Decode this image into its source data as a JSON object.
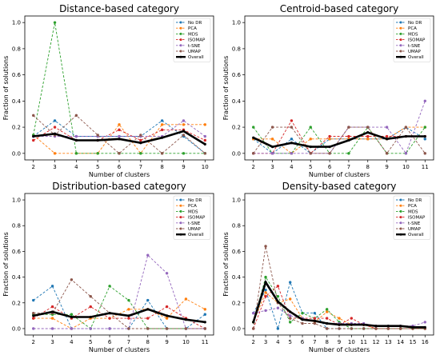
{
  "chart_data": [
    {
      "type": "line",
      "title": "Distance-based category",
      "xlabel": "Number of clusters",
      "ylabel": "Fraction of solutions",
      "x": [
        2,
        3,
        4,
        5,
        6,
        7,
        8,
        9,
        10
      ],
      "xlim": [
        1.6,
        10.4
      ],
      "ylim": [
        -0.05,
        1.05
      ],
      "yticks": [
        0.0,
        0.2,
        0.4,
        0.6,
        0.8,
        1.0
      ],
      "grid": false,
      "legend": "top-right",
      "series": [
        {
          "name": "No DR",
          "color": "#1f77b4",
          "values": [
            0.13,
            0.25,
            0.13,
            0.13,
            0.13,
            0.13,
            0.25,
            0.13,
            0.0
          ]
        },
        {
          "name": "PCA",
          "color": "#ff7f0e",
          "values": [
            0.14,
            0.0,
            0.0,
            0.0,
            0.22,
            0.0,
            0.22,
            0.22,
            0.22
          ]
        },
        {
          "name": "MDS",
          "color": "#2ca02c",
          "values": [
            0.14,
            1.0,
            0.0,
            0.0,
            0.0,
            0.0,
            0.0,
            0.0,
            0.0
          ]
        },
        {
          "name": "ISOMAP",
          "color": "#d62728",
          "values": [
            0.1,
            0.2,
            0.1,
            0.1,
            0.18,
            0.1,
            0.18,
            0.18,
            0.1
          ]
        },
        {
          "name": "t-SNE",
          "color": "#9467bd",
          "values": [
            0.13,
            0.13,
            0.13,
            0.13,
            0.13,
            0.13,
            0.13,
            0.25,
            0.13
          ]
        },
        {
          "name": "UMAP",
          "color": "#8c564b",
          "values": [
            0.29,
            0.14,
            0.29,
            0.14,
            0.0,
            0.14,
            0.0,
            0.14,
            0.0
          ]
        },
        {
          "name": "Overall",
          "color": "#000000",
          "values": [
            0.13,
            0.15,
            0.1,
            0.1,
            0.11,
            0.08,
            0.12,
            0.17,
            0.07
          ]
        }
      ]
    },
    {
      "type": "line",
      "title": "Centroid-based category",
      "xlabel": "Number of clusters",
      "ylabel": "Fraction of solutions",
      "x": [
        2,
        3,
        4,
        5,
        6,
        7,
        8,
        9,
        10,
        11
      ],
      "xlim": [
        1.55,
        11.45
      ],
      "ylim": [
        -0.05,
        1.05
      ],
      "yticks": [
        0.0,
        0.2,
        0.4,
        0.6,
        0.8,
        1.0
      ],
      "grid": false,
      "legend": "top-right",
      "series": [
        {
          "name": "No DR",
          "color": "#1f77b4",
          "values": [
            0.11,
            0.0,
            0.11,
            0.0,
            0.11,
            0.11,
            0.11,
            0.11,
            0.2,
            0.11
          ]
        },
        {
          "name": "PCA",
          "color": "#ff7f0e",
          "values": [
            0.11,
            0.11,
            0.0,
            0.11,
            0.11,
            0.11,
            0.11,
            0.11,
            0.2,
            0.2
          ]
        },
        {
          "name": "MDS",
          "color": "#2ca02c",
          "values": [
            0.2,
            0.0,
            0.0,
            0.2,
            0.0,
            0.0,
            0.2,
            0.0,
            0.0,
            0.2
          ]
        },
        {
          "name": "ISOMAP",
          "color": "#d62728",
          "values": [
            0.0,
            0.0,
            0.25,
            0.0,
            0.13,
            0.13,
            0.13,
            0.13,
            0.13,
            0.13
          ]
        },
        {
          "name": "t-SNE",
          "color": "#9467bd",
          "values": [
            0.0,
            0.0,
            0.0,
            0.0,
            0.0,
            0.2,
            0.2,
            0.2,
            0.0,
            0.4
          ]
        },
        {
          "name": "UMAP",
          "color": "#8c564b",
          "values": [
            0.0,
            0.2,
            0.2,
            0.0,
            0.0,
            0.2,
            0.2,
            0.0,
            0.2,
            0.0
          ]
        },
        {
          "name": "Overall",
          "color": "#000000",
          "values": [
            0.12,
            0.05,
            0.08,
            0.05,
            0.05,
            0.1,
            0.16,
            0.11,
            0.13,
            0.13
          ]
        }
      ]
    },
    {
      "type": "line",
      "title": "Distribution-based category",
      "xlabel": "Number of clusters",
      "ylabel": "Fraction of solutions",
      "x": [
        2,
        3,
        4,
        5,
        6,
        7,
        8,
        9,
        10,
        11
      ],
      "xlim": [
        1.55,
        11.45
      ],
      "ylim": [
        -0.05,
        1.05
      ],
      "yticks": [
        0.0,
        0.2,
        0.4,
        0.6,
        0.8,
        1.0
      ],
      "grid": false,
      "legend": "top-right",
      "series": [
        {
          "name": "No DR",
          "color": "#1f77b4",
          "values": [
            0.22,
            0.33,
            0.0,
            0.0,
            0.0,
            0.0,
            0.22,
            0.0,
            0.0,
            0.11
          ]
        },
        {
          "name": "PCA",
          "color": "#ff7f0e",
          "values": [
            0.08,
            0.08,
            0.0,
            0.08,
            0.08,
            0.15,
            0.15,
            0.08,
            0.23,
            0.15
          ]
        },
        {
          "name": "MDS",
          "color": "#2ca02c",
          "values": [
            0.11,
            0.11,
            0.11,
            0.0,
            0.33,
            0.22,
            0.0,
            0.0,
            0.0,
            0.0
          ]
        },
        {
          "name": "ISOMAP",
          "color": "#d62728",
          "values": [
            0.08,
            0.17,
            0.08,
            0.17,
            0.08,
            0.08,
            0.08,
            0.17,
            0.08,
            0.0
          ]
        },
        {
          "name": "t-SNE",
          "color": "#9467bd",
          "values": [
            0.0,
            0.0,
            0.0,
            0.0,
            0.0,
            0.0,
            0.57,
            0.43,
            0.0,
            0.0
          ]
        },
        {
          "name": "UMAP",
          "color": "#8c564b",
          "values": [
            0.12,
            0.12,
            0.38,
            0.25,
            0.12,
            0.0,
            0.0,
            0.0,
            0.0,
            0.0
          ]
        },
        {
          "name": "Overall",
          "color": "#000000",
          "values": [
            0.1,
            0.13,
            0.09,
            0.09,
            0.12,
            0.1,
            0.15,
            0.1,
            0.07,
            0.05
          ]
        }
      ]
    },
    {
      "type": "line",
      "title": "Density-based category",
      "xlabel": "Number of clusters",
      "ylabel": "Fraction of solutions",
      "x": [
        2,
        3,
        4,
        5,
        6,
        7,
        8,
        9,
        10,
        11,
        12,
        13,
        14,
        15,
        16
      ],
      "xticks": [
        2,
        3,
        4,
        5,
        6,
        7,
        8,
        9,
        10,
        11,
        12,
        13,
        14,
        15,
        16
      ],
      "xlim": [
        1.3,
        16.7
      ],
      "ylim": [
        -0.05,
        1.05
      ],
      "yticks": [
        0.0,
        0.2,
        0.4,
        0.6,
        0.8,
        1.0
      ],
      "grid": false,
      "legend": "top-right",
      "series": [
        {
          "name": "No DR",
          "color": "#1f77b4",
          "values": [
            0.12,
            0.3,
            0.0,
            0.36,
            0.12,
            0.12,
            0.0,
            0.0,
            0.0,
            0.0,
            0.0,
            0.0,
            0.0,
            0.0,
            0.0
          ]
        },
        {
          "name": "PCA",
          "color": "#ff7f0e",
          "values": [
            0.05,
            0.28,
            0.2,
            0.23,
            0.08,
            0.05,
            0.13,
            0.08,
            0.03,
            0.03,
            0.0,
            0.0,
            0.0,
            0.0,
            0.0
          ]
        },
        {
          "name": "MDS",
          "color": "#2ca02c",
          "values": [
            0.05,
            0.4,
            0.25,
            0.05,
            0.12,
            0.08,
            0.15,
            0.05,
            0.0,
            0.0,
            0.0,
            0.0,
            0.0,
            0.0,
            0.0
          ]
        },
        {
          "name": "ISOMAP",
          "color": "#d62728",
          "values": [
            0.0,
            0.25,
            0.33,
            0.08,
            0.08,
            0.08,
            0.08,
            0.03,
            0.08,
            0.03,
            0.0,
            0.0,
            0.0,
            0.0,
            0.0
          ]
        },
        {
          "name": "t-SNE",
          "color": "#9467bd",
          "values": [
            0.12,
            0.14,
            0.16,
            0.1,
            0.08,
            0.06,
            0.04,
            0.04,
            0.04,
            0.04,
            0.02,
            0.02,
            0.02,
            0.02,
            0.05
          ]
        },
        {
          "name": "UMAP",
          "color": "#8c564b",
          "values": [
            0.0,
            0.64,
            0.2,
            0.08,
            0.04,
            0.04,
            0.0,
            0.0,
            0.0,
            0.0,
            0.0,
            0.0,
            0.0,
            0.0,
            0.0
          ]
        },
        {
          "name": "Overall",
          "color": "#000000",
          "values": [
            0.05,
            0.36,
            0.21,
            0.13,
            0.07,
            0.06,
            0.04,
            0.03,
            0.03,
            0.03,
            0.02,
            0.02,
            0.02,
            0.01,
            0.01
          ]
        }
      ]
    }
  ]
}
